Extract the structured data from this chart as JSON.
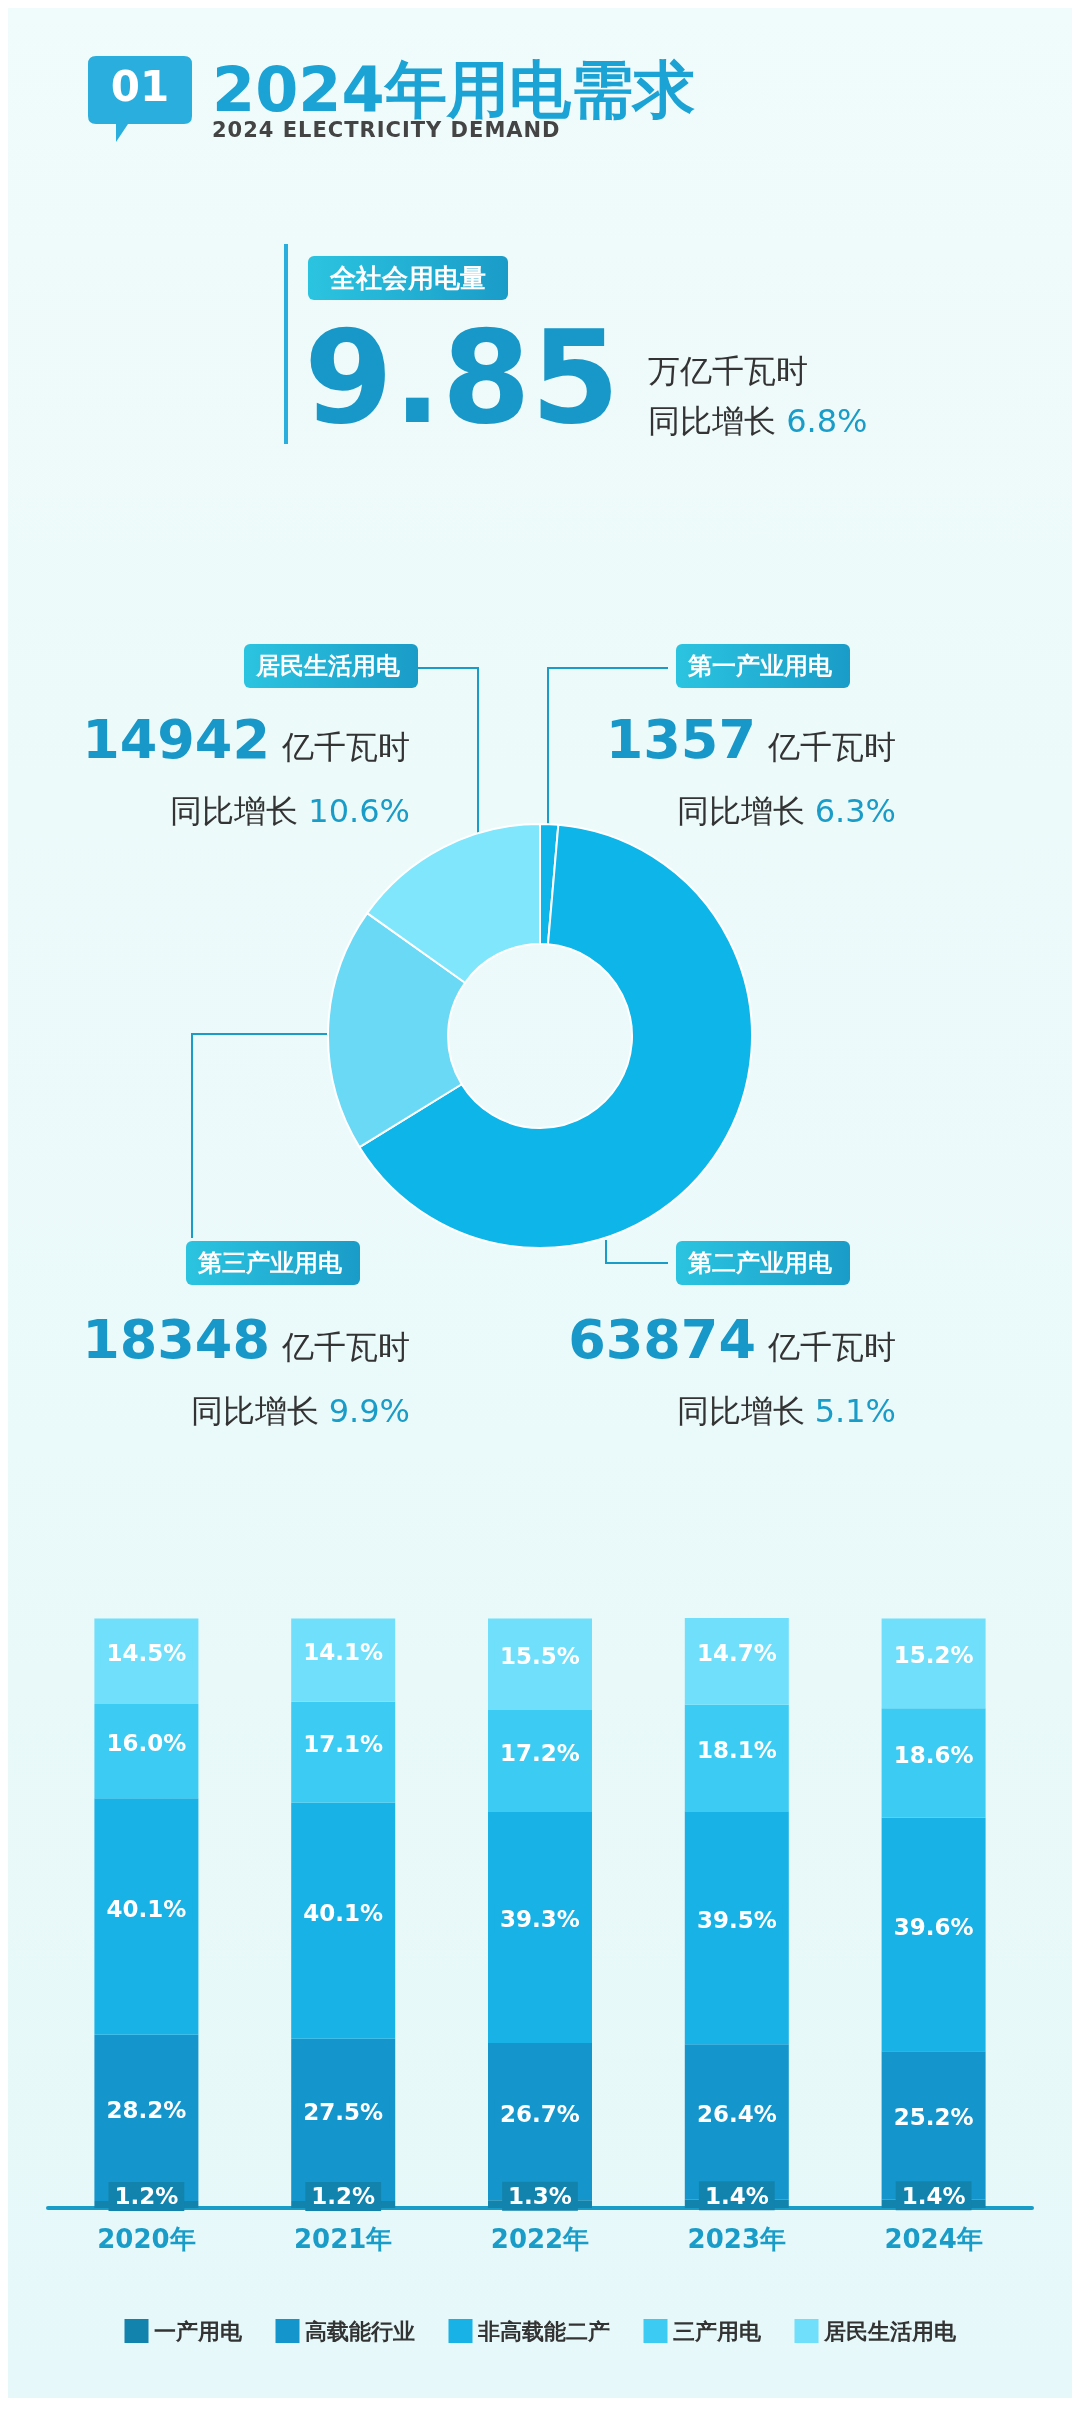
{
  "chart_data": [
    {
      "type": "donut",
      "title": "2024年用电需求",
      "subtitle": "2024 ELECTRICITY DEMAND",
      "categories": [
        "第一产业用电",
        "第二产业用电",
        "第三产业用电",
        "居民生活用电"
      ],
      "values": [
        1357,
        63874,
        18348,
        14942
      ],
      "value_labels": [
        "1357",
        "63874",
        "18348",
        "14942"
      ],
      "colors": [
        "#0eb5e8",
        "#0eb5e8",
        "#6ad9f6",
        "#80e6fb"
      ],
      "annotations": [
        "01",
        "全社会用电量",
        "9.85",
        "万亿千瓦时",
        "同比增长 6.8%",
        "亿千瓦时",
        "同比增长 6.3%",
        "亿千瓦时",
        "同比增长 5.1%",
        "亿千瓦时",
        "同比增长 9.9%",
        "亿千瓦时",
        "同比增长 10.6%"
      ],
      "legend": false
    },
    {
      "type": "bar",
      "stacked": true,
      "categories": [
        "2020年",
        "2021年",
        "2022年",
        "2023年",
        "2024年"
      ],
      "series": [
        {
          "name": "一产用电",
          "color": "#1283ad",
          "values": [
            1.2,
            1.2,
            1.3,
            1.4,
            1.4
          ],
          "value_labels": [
            "1.2%",
            "1.2%",
            "1.3%",
            "1.4%",
            "1.4%"
          ]
        },
        {
          "name": "高载能行业",
          "color": "#1496cc",
          "values": [
            28.2,
            27.5,
            26.7,
            26.4,
            25.2
          ],
          "value_labels": [
            "28.2%",
            "27.5%",
            "26.7%",
            "26.4%",
            "25.2%"
          ]
        },
        {
          "name": "非高载能二产",
          "color": "#18b2e6",
          "values": [
            40.1,
            40.1,
            39.3,
            39.5,
            39.6
          ],
          "value_labels": [
            "40.1%",
            "40.1%",
            "39.3%",
            "39.5%",
            "39.6%"
          ]
        },
        {
          "name": "三产用电",
          "color": "#3ccbf3",
          "values": [
            16.0,
            17.1,
            17.2,
            18.1,
            18.6
          ],
          "value_labels": [
            "16.0%",
            "17.1%",
            "17.2%",
            "18.1%",
            "18.6%"
          ]
        },
        {
          "name": "居民生活用电",
          "color": "#6fdffb",
          "values": [
            14.5,
            14.1,
            15.5,
            14.7,
            15.2
          ],
          "value_labels": [
            "14.5%",
            "14.1%",
            "15.5%",
            "14.7%",
            "15.2%"
          ]
        }
      ],
      "legend": "bottom",
      "grid": false
    }
  ]
}
